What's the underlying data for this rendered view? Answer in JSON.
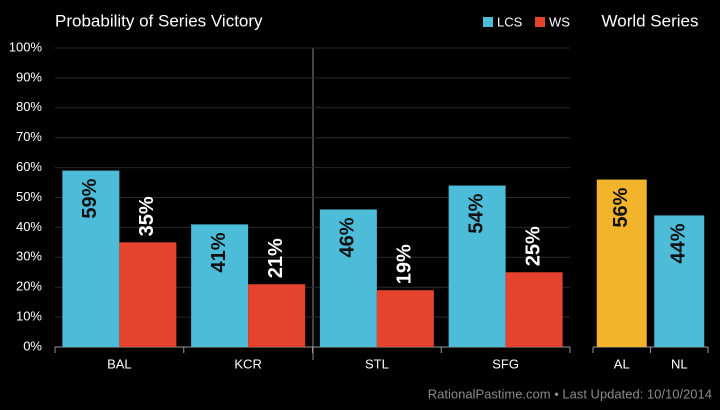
{
  "chart_data": [
    {
      "type": "bar",
      "title": "Probability of Series Victory",
      "categories": [
        "BAL",
        "KCR",
        "STL",
        "SFG"
      ],
      "series": [
        {
          "name": "LCS",
          "color": "#4cbcd9",
          "values": [
            59,
            41,
            46,
            54
          ],
          "value_labels": [
            "59%",
            "41%",
            "46%",
            "54%"
          ]
        },
        {
          "name": "WS",
          "color": "#e5432d",
          "values": [
            35,
            21,
            19,
            25
          ],
          "value_labels": [
            "35%",
            "21%",
            "19%",
            "25%"
          ]
        }
      ],
      "ylim": [
        0,
        100
      ],
      "yticks": [
        {
          "value": 0,
          "label": "0%"
        },
        {
          "value": 10,
          "label": "10%"
        },
        {
          "value": 20,
          "label": "20%"
        },
        {
          "value": 30,
          "label": "30%"
        },
        {
          "value": 40,
          "label": "40%"
        },
        {
          "value": 50,
          "label": "50%"
        },
        {
          "value": 60,
          "label": "60%"
        },
        {
          "value": 70,
          "label": "70%"
        },
        {
          "value": 80,
          "label": "80%"
        },
        {
          "value": 90,
          "label": "90%"
        },
        {
          "value": 100,
          "label": "100%"
        }
      ],
      "grid": true,
      "legend": "top-right"
    },
    {
      "type": "bar",
      "title": "World Series",
      "categories": [
        "AL",
        "NL"
      ],
      "values": [
        56,
        44
      ],
      "value_labels": [
        "56%",
        "44%"
      ],
      "colors": [
        "#f2b42a",
        "#4cbcd9"
      ],
      "ylim": [
        0,
        100
      ]
    }
  ],
  "footer": "RationalPastime.com • Last Updated: 10/10/2014"
}
